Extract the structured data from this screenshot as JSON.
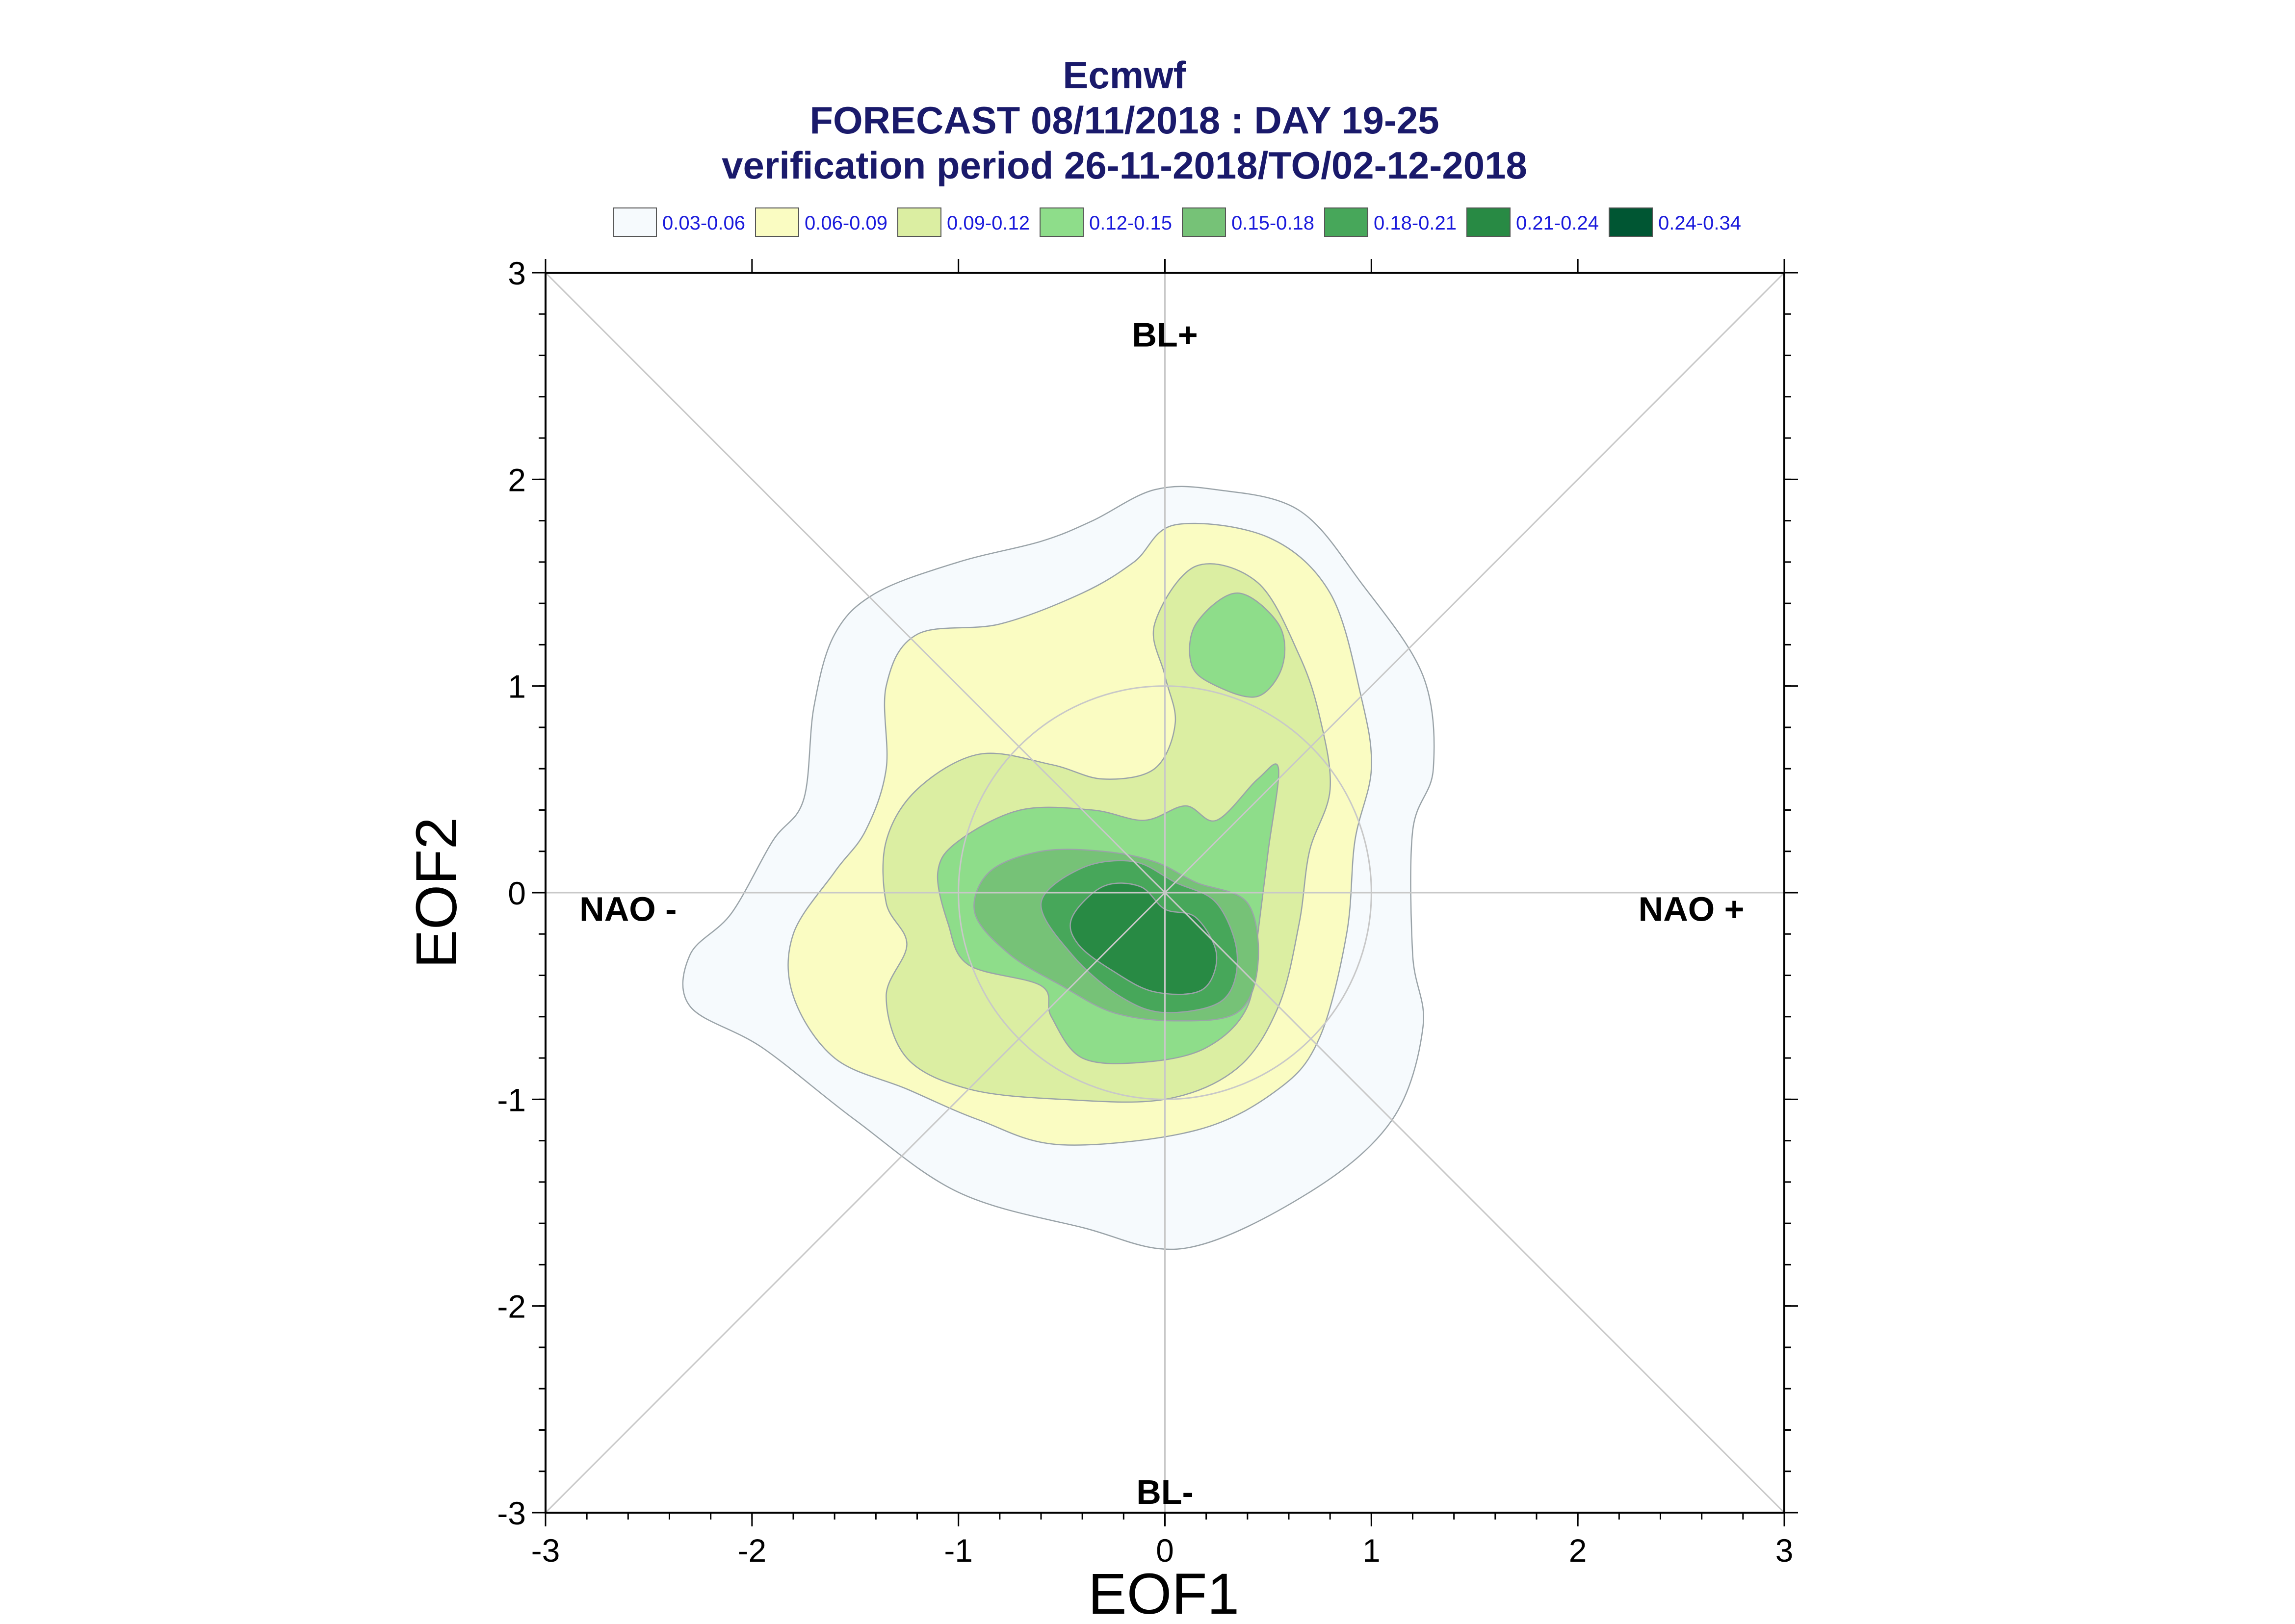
{
  "chart_data": {
    "type": "contour",
    "title": "Ecmwf",
    "subtitle_lines": [
      "FORECAST 08/11/2018 : DAY 19-25",
      "verification period 26-11-2018/TO/02-12-2018"
    ],
    "xlabel": "EOF1",
    "ylabel": "EOF2",
    "xlim": [
      -3,
      3
    ],
    "ylim": [
      -3,
      3
    ],
    "x_ticks": [
      -3,
      -2,
      -1,
      0,
      1,
      2,
      3
    ],
    "y_ticks": [
      -3,
      -2,
      -1,
      0,
      1,
      2,
      3
    ],
    "x_tick_labels": [
      "-3",
      "-2",
      "-1",
      "0",
      "1",
      "2",
      "3"
    ],
    "y_tick_labels": [
      "-3",
      "-2",
      "-1",
      "0",
      "1",
      "2",
      "3"
    ],
    "grid": false,
    "reference_circle_radius": 1,
    "region_labels": [
      {
        "text": "BL+",
        "x": 0,
        "y": 2.7
      },
      {
        "text": "BL-",
        "x": 0,
        "y": -2.9
      },
      {
        "text": "NAO -",
        "x": -2.6,
        "y": -0.08
      },
      {
        "text": "NAO +",
        "x": 2.55,
        "y": -0.08
      }
    ],
    "legend_placement": "top",
    "levels": [
      {
        "label": "0.03-0.06",
        "color": "#f6fafd"
      },
      {
        "label": "0.06-0.09",
        "color": "#fafcc2"
      },
      {
        "label": "0.09-0.12",
        "color": "#dbeea2"
      },
      {
        "label": "0.12-0.15",
        "color": "#8edd8a"
      },
      {
        "label": "0.15-0.18",
        "color": "#76c277"
      },
      {
        "label": "0.18-0.21",
        "color": "#47a75a"
      },
      {
        "label": "0.21-0.24",
        "color": "#288a44"
      },
      {
        "label": "0.24-0.34",
        "color": "#005633"
      }
    ],
    "contours": [
      {
        "level": 0,
        "points": [
          [
            -0.05,
            1.95
          ],
          [
            0.25,
            1.95
          ],
          [
            0.65,
            1.85
          ],
          [
            0.95,
            1.5
          ],
          [
            1.25,
            1.05
          ],
          [
            1.3,
            0.6
          ],
          [
            1.2,
            0.3
          ],
          [
            1.2,
            -0.3
          ],
          [
            1.25,
            -0.65
          ],
          [
            1.1,
            -1.1
          ],
          [
            0.7,
            -1.45
          ],
          [
            0.1,
            -1.72
          ],
          [
            -0.4,
            -1.62
          ],
          [
            -1.0,
            -1.45
          ],
          [
            -1.5,
            -1.1
          ],
          [
            -1.95,
            -0.75
          ],
          [
            -2.3,
            -0.55
          ],
          [
            -2.3,
            -0.3
          ],
          [
            -2.1,
            -0.1
          ],
          [
            -1.9,
            0.25
          ],
          [
            -1.75,
            0.45
          ],
          [
            -1.7,
            0.9
          ],
          [
            -1.6,
            1.25
          ],
          [
            -1.4,
            1.45
          ],
          [
            -1.0,
            1.6
          ],
          [
            -0.6,
            1.7
          ],
          [
            -0.35,
            1.8
          ]
        ]
      },
      {
        "level": 1,
        "points": [
          [
            0.05,
            1.78
          ],
          [
            0.5,
            1.72
          ],
          [
            0.8,
            1.45
          ],
          [
            0.95,
            0.95
          ],
          [
            1.0,
            0.6
          ],
          [
            0.92,
            0.25
          ],
          [
            0.88,
            -0.2
          ],
          [
            0.75,
            -0.7
          ],
          [
            0.55,
            -0.95
          ],
          [
            0.15,
            -1.15
          ],
          [
            -0.5,
            -1.22
          ],
          [
            -0.9,
            -1.1
          ],
          [
            -1.25,
            -0.95
          ],
          [
            -1.6,
            -0.8
          ],
          [
            -1.8,
            -0.5
          ],
          [
            -1.8,
            -0.2
          ],
          [
            -1.6,
            0.1
          ],
          [
            -1.45,
            0.3
          ],
          [
            -1.35,
            0.6
          ],
          [
            -1.35,
            1.0
          ],
          [
            -1.2,
            1.25
          ],
          [
            -0.8,
            1.3
          ],
          [
            -0.4,
            1.45
          ],
          [
            -0.15,
            1.6
          ]
        ]
      },
      {
        "level": 2,
        "points": [
          [
            0.15,
            1.58
          ],
          [
            0.45,
            1.5
          ],
          [
            0.65,
            1.15
          ],
          [
            0.75,
            0.85
          ],
          [
            0.8,
            0.5
          ],
          [
            0.7,
            0.2
          ],
          [
            0.65,
            -0.15
          ],
          [
            0.55,
            -0.55
          ],
          [
            0.35,
            -0.85
          ],
          [
            0.0,
            -1.0
          ],
          [
            -0.5,
            -1.0
          ],
          [
            -0.95,
            -0.95
          ],
          [
            -1.25,
            -0.8
          ],
          [
            -1.35,
            -0.5
          ],
          [
            -1.25,
            -0.25
          ],
          [
            -1.35,
            -0.05
          ],
          [
            -1.35,
            0.25
          ],
          [
            -1.2,
            0.5
          ],
          [
            -0.9,
            0.67
          ],
          [
            -0.55,
            0.62
          ],
          [
            -0.3,
            0.55
          ],
          [
            -0.05,
            0.6
          ],
          [
            0.05,
            0.82
          ],
          [
            0.0,
            1.05
          ],
          [
            -0.05,
            1.3
          ]
        ]
      },
      {
        "level": 3,
        "points": [
          [
            -1.0,
            0.25
          ],
          [
            -0.7,
            0.4
          ],
          [
            -0.35,
            0.4
          ],
          [
            -0.1,
            0.35
          ],
          [
            0.1,
            0.42
          ],
          [
            0.25,
            0.35
          ],
          [
            0.45,
            0.55
          ],
          [
            0.55,
            0.6
          ],
          [
            0.5,
            0.2
          ],
          [
            0.45,
            -0.2
          ],
          [
            0.4,
            -0.55
          ],
          [
            0.2,
            -0.75
          ],
          [
            -0.1,
            -0.82
          ],
          [
            -0.4,
            -0.8
          ],
          [
            -0.55,
            -0.6
          ],
          [
            -0.6,
            -0.45
          ],
          [
            -0.95,
            -0.35
          ],
          [
            -1.05,
            -0.15
          ],
          [
            -1.1,
            0.1
          ]
        ]
      },
      {
        "level": 3,
        "points": [
          [
            0.15,
            1.3
          ],
          [
            0.35,
            1.45
          ],
          [
            0.55,
            1.3
          ],
          [
            0.57,
            1.1
          ],
          [
            0.45,
            0.95
          ],
          [
            0.25,
            1.0
          ],
          [
            0.13,
            1.1
          ]
        ]
      },
      {
        "level": 4,
        "points": [
          [
            -0.85,
            0.1
          ],
          [
            -0.6,
            0.2
          ],
          [
            -0.3,
            0.2
          ],
          [
            -0.05,
            0.15
          ],
          [
            0.15,
            0.05
          ],
          [
            0.4,
            -0.05
          ],
          [
            0.45,
            -0.35
          ],
          [
            0.35,
            -0.58
          ],
          [
            0.05,
            -0.62
          ],
          [
            -0.25,
            -0.58
          ],
          [
            -0.5,
            -0.45
          ],
          [
            -0.75,
            -0.3
          ],
          [
            -0.92,
            -0.1
          ]
        ]
      },
      {
        "level": 5,
        "points": [
          [
            -0.6,
            -0.05
          ],
          [
            -0.4,
            0.12
          ],
          [
            -0.15,
            0.15
          ],
          [
            0.05,
            0.05
          ],
          [
            0.25,
            -0.05
          ],
          [
            0.35,
            -0.3
          ],
          [
            0.28,
            -0.52
          ],
          [
            0.0,
            -0.58
          ],
          [
            -0.22,
            -0.5
          ],
          [
            -0.45,
            -0.3
          ]
        ]
      },
      {
        "level": 6,
        "points": [
          [
            -0.45,
            -0.12
          ],
          [
            -0.3,
            0.03
          ],
          [
            -0.12,
            0.03
          ],
          [
            0.0,
            -0.08
          ],
          [
            0.15,
            -0.12
          ],
          [
            0.25,
            -0.3
          ],
          [
            0.18,
            -0.47
          ],
          [
            -0.05,
            -0.48
          ],
          [
            -0.25,
            -0.38
          ],
          [
            -0.42,
            -0.25
          ]
        ]
      }
    ]
  }
}
